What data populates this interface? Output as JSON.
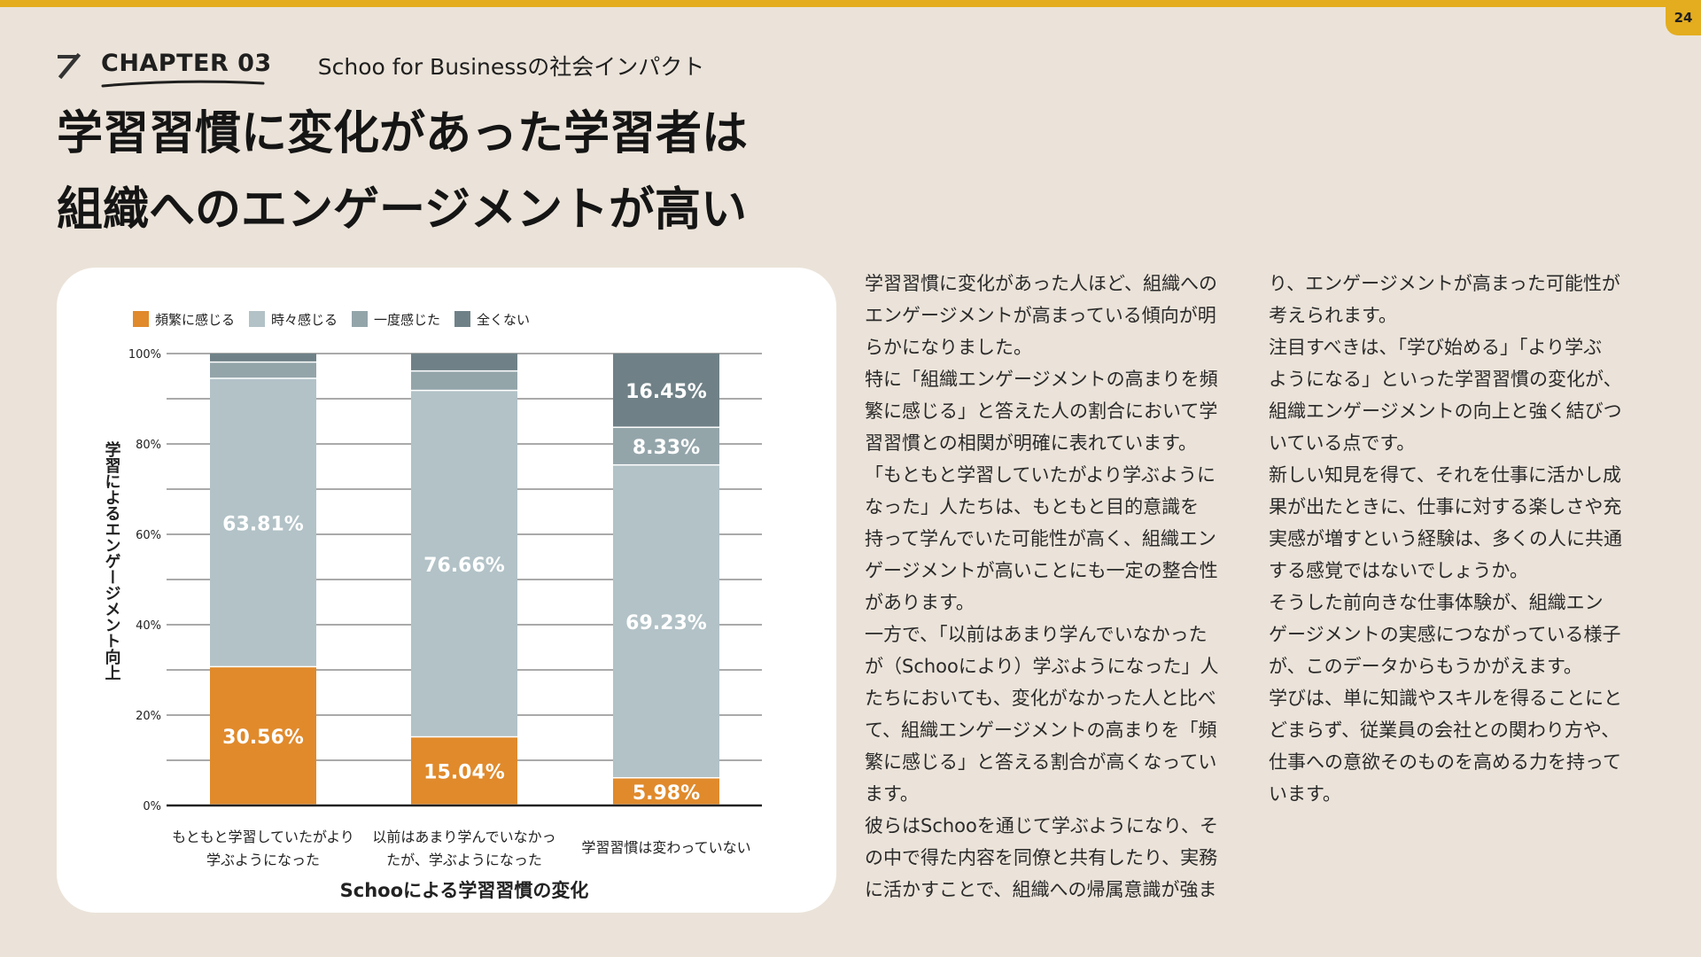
{
  "page": {
    "number": "24",
    "chapter": "CHAPTER 03",
    "chapter_sub": "Schoo for Businessの社会インパクト"
  },
  "title": {
    "line1": "学習習慣に変化があった学習者は",
    "line2": "組織へのエンゲージメントが高い"
  },
  "colors": {
    "accent": "#e4ad1f",
    "series": [
      "#e08a2c",
      "#b2c2c7",
      "#94a5aa",
      "#6f8187"
    ]
  },
  "chart_data": {
    "type": "bar",
    "stacked": true,
    "xlabel": "Schooによる学習習慣の変化",
    "ylabel": "学習によるエンゲージメント向上",
    "ylim": [
      0,
      100
    ],
    "yticks": [
      "0%",
      "20%",
      "40%",
      "60%",
      "80%",
      "100%"
    ],
    "grid": true,
    "legend_position": "top-left",
    "categories": [
      [
        "もともと学習していたがより",
        "学ぶようになった"
      ],
      [
        "以前はあまり学んでいなかっ",
        "たが、学ぶようになった"
      ],
      [
        "学習習慣は変わっていない"
      ]
    ],
    "series": [
      {
        "name": "頻繁に感じる",
        "values": [
          30.56,
          15.04,
          5.98
        ],
        "labels": [
          "30.56%",
          "15.04%",
          "5.98%"
        ]
      },
      {
        "name": "時々感じる",
        "values": [
          63.81,
          76.66,
          69.23
        ],
        "labels": [
          "63.81%",
          "76.66%",
          "69.23%"
        ]
      },
      {
        "name": "一度感じた",
        "values": [
          3.6,
          4.3,
          8.33
        ],
        "labels": [
          "",
          "",
          "8.33%"
        ]
      },
      {
        "name": "全くない",
        "values": [
          2.03,
          4.0,
          16.45
        ],
        "labels": [
          "",
          "",
          "16.45%"
        ]
      }
    ]
  },
  "body": {
    "col1": "学習習慣に変化があった人ほど、組織への\nエンゲージメントが高まっている傾向が明\nらかになりました。\n特に「組織エンゲージメントの高まりを頻\n繁に感じる」と答えた人の割合において学\n習習慣との相関が明確に表れています。\n「もともと学習していたがより学ぶように\nなった」人たちは、もともと目的意識を\n持って学んでいた可能性が高く、組織エン\nゲージメントが高いことにも一定の整合性\nがあります。\n一方で、「以前はあまり学んでいなかった\nが（Schooにより）学ぶようになった」人\nたちにおいても、変化がなかった人と比べ\nて、組織エンゲージメントの高まりを「頻\n繁に感じる」と答える割合が高くなってい\nます。\n彼らはSchooを通じて学ぶようになり、そ\nの中で得た内容を同僚と共有したり、実務\nに活かすことで、組織への帰属意識が強ま",
    "col2": "り、エンゲージメントが高まった可能性が\n考えられます。\n注目すべきは、「学び始める」「より学ぶ\nようになる」といった学習習慣の変化が、\n組織エンゲージメントの向上と強く結びつ\nいている点です。\n新しい知見を得て、それを仕事に活かし成\n果が出たときに、仕事に対する楽しさや充\n実感が増すという経験は、多くの人に共通\nする感覚ではないでしょうか。\nそうした前向きな仕事体験が、組織エン\nゲージメントの実感につながっている様子\nが、このデータからもうかがえます。\n学びは、単に知識やスキルを得ることにと\nどまらず、従業員の会社との関わり方や、\n仕事への意欲そのものを高める力を持って\nいます。"
  }
}
